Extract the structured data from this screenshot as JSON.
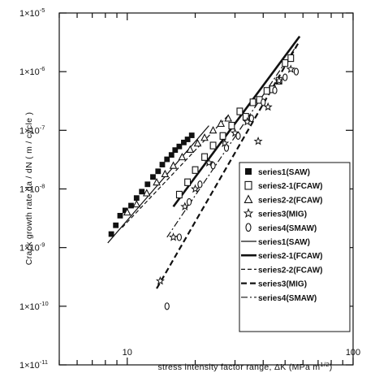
{
  "chart_data": {
    "type": "scatter",
    "title": "",
    "xlabel": "stress intensity factor range, ΔK (MPa m^1/2)",
    "xlabel_main": "stress intensity factor range, ΔK (MPa m",
    "xlabel_exp": "1/2",
    "xlabel_close": ")",
    "ylabel": "Crack growth rate da / dN ( m / cycle )",
    "x_scale": "log",
    "y_scale": "log",
    "xlim": [
      5,
      100
    ],
    "ylim": [
      1e-11,
      1e-05
    ],
    "grid": false,
    "legend_position": "right",
    "x_tick_labels": [
      {
        "value": 10,
        "label": "10"
      },
      {
        "value": 100,
        "label": "100"
      }
    ],
    "y_tick_labels": [
      {
        "value": 1e-05,
        "mantissa": "1×10",
        "exp": "-5"
      },
      {
        "value": 1e-06,
        "mantissa": "1×10",
        "exp": "-6"
      },
      {
        "value": 1e-07,
        "mantissa": "1×10",
        "exp": "-7"
      },
      {
        "value": 1e-08,
        "mantissa": "1×10",
        "exp": "-8"
      },
      {
        "value": 1e-09,
        "mantissa": "1×10",
        "exp": "-9"
      },
      {
        "value": 1e-10,
        "mantissa": "1×10",
        "exp": "-10"
      },
      {
        "value": 1e-11,
        "mantissa": "1×10",
        "exp": "-11"
      }
    ],
    "scatter_series": [
      {
        "name": "series1(SAW)",
        "marker": "filled-square",
        "x": [
          8.5,
          8.9,
          9.3,
          9.8,
          10.4,
          11.0,
          11.6,
          12.3,
          13.0,
          13.7,
          14.3,
          15.0,
          15.7,
          16.3,
          17.0,
          17.8,
          18.5,
          19.3
        ],
        "y": [
          1.7e-09,
          2.4e-09,
          3.5e-09,
          4.3e-09,
          5.2e-09,
          7e-09,
          9e-09,
          1.2e-08,
          1.6e-08,
          2e-08,
          2.6e-08,
          3.2e-08,
          3.8e-08,
          4.6e-08,
          5.3e-08,
          6.2e-08,
          7e-08,
          8.2e-08
        ]
      },
      {
        "name": "series2-1(FCAW)",
        "marker": "open-square",
        "x": [
          17.0,
          18.5,
          20.0,
          22.0,
          24.0,
          26.5,
          29.0,
          31.5,
          33.5,
          36.0,
          38.5,
          41.5,
          44.0,
          47.0,
          50.0,
          53.0
        ],
        "y": [
          8e-09,
          1.3e-08,
          2.1e-08,
          3.5e-08,
          5.5e-08,
          8e-08,
          1.2e-07,
          2.1e-07,
          1.7e-07,
          3e-07,
          3.3e-07,
          4.7e-07,
          5e-07,
          7e-07,
          1.4e-06,
          1.7e-06
        ]
      },
      {
        "name": "series2-2(FCAW)",
        "marker": "open-triangle",
        "x": [
          10.0,
          11.0,
          12.2,
          13.5,
          14.7,
          16.0,
          17.5,
          19.0,
          20.5,
          22.0,
          24.0,
          26.0,
          28.0
        ],
        "y": [
          4e-09,
          5.5e-09,
          8.5e-09,
          1.3e-08,
          1.8e-08,
          2.5e-08,
          3.5e-08,
          4.7e-08,
          6e-08,
          7.5e-08,
          1e-07,
          1.3e-07,
          1.6e-07
        ]
      },
      {
        "name": "series3(MIG)",
        "marker": "open-star",
        "x": [
          14.0,
          16.0,
          18.0,
          20.0,
          23.0,
          27.0,
          30.0,
          34.0,
          38.0,
          42.0,
          47.0,
          53.0
        ],
        "y": [
          2.7e-10,
          1.5e-09,
          5e-09,
          1e-08,
          2.8e-08,
          6e-08,
          9e-08,
          1.4e-07,
          6.5e-08,
          2.5e-07,
          7e-07,
          1.1e-06
        ]
      },
      {
        "name": "series4(SMAW)",
        "marker": "open-oval",
        "x": [
          15.0,
          17.0,
          18.8,
          21.0,
          24.0,
          27.5,
          31.0,
          35.5,
          40.0,
          45.0,
          50.0,
          56.0
        ],
        "y": [
          1e-10,
          1.5e-09,
          6e-09,
          1.2e-08,
          2.5e-08,
          5e-08,
          8e-08,
          1.6e-07,
          3e-07,
          4.8e-07,
          8e-07,
          1e-06
        ]
      }
    ],
    "line_series": [
      {
        "name": "series1(SAW)",
        "dash": "solid",
        "x": [
          8.2,
          23.0
        ],
        "y": [
          1.2e-09,
          1.2e-07
        ]
      },
      {
        "name": "series2-1(FCAW)",
        "dash": "thick",
        "x": [
          16.0,
          58.0
        ],
        "y": [
          5e-09,
          4e-06
        ]
      },
      {
        "name": "series2-2(FCAW)",
        "dash": "dashed",
        "x": [
          9.5,
          28.0
        ],
        "y": [
          2.2e-09,
          1.8e-07
        ]
      },
      {
        "name": "series3(MIG)",
        "dash": "dashed-bold",
        "x": [
          13.5,
          57.0
        ],
        "y": [
          2e-10,
          3e-06
        ]
      },
      {
        "name": "series4(SMAW)",
        "dash": "dash-dot",
        "x": [
          15.0,
          57.0
        ],
        "y": [
          1.5e-09,
          3e-06
        ]
      }
    ]
  }
}
